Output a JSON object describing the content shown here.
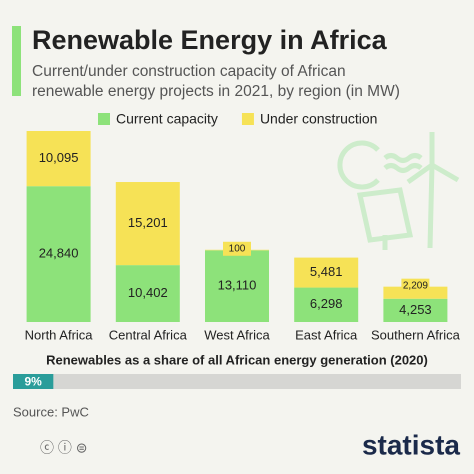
{
  "chart_data": [
    {
      "type": "stacked-bar",
      "title": "Renewable Energy in Africa",
      "subtitle": [
        "Current/under construction capacity of African",
        "renewable energy projects in 2021, by region (in MW)"
      ],
      "categories": [
        "North Africa",
        "Central Africa",
        "West Africa",
        "East Africa",
        "Southern Africa"
      ],
      "legend": "top",
      "series": [
        {
          "name": "Current capacity",
          "color": "#8de27a",
          "values": [
            24840,
            10402,
            13110,
            6298,
            4253
          ],
          "value_labels": [
            "24,840",
            "10,402",
            "13,110",
            "6,298",
            "4,253"
          ]
        },
        {
          "name": "Under construction",
          "color": "#f6e256",
          "values": [
            10095,
            15201,
            100,
            5481,
            2209
          ],
          "value_labels": [
            "10,095",
            "15,201",
            "100",
            "5,481",
            "2,209"
          ]
        }
      ]
    },
    {
      "type": "progress",
      "title": "Renewables as a share of all African energy generation (2020)",
      "value": 9,
      "value_label": "9%",
      "xlim": [
        0,
        100
      ],
      "color": "#2a9d9a"
    }
  ],
  "source": "Source: PwC",
  "brand": "statista"
}
